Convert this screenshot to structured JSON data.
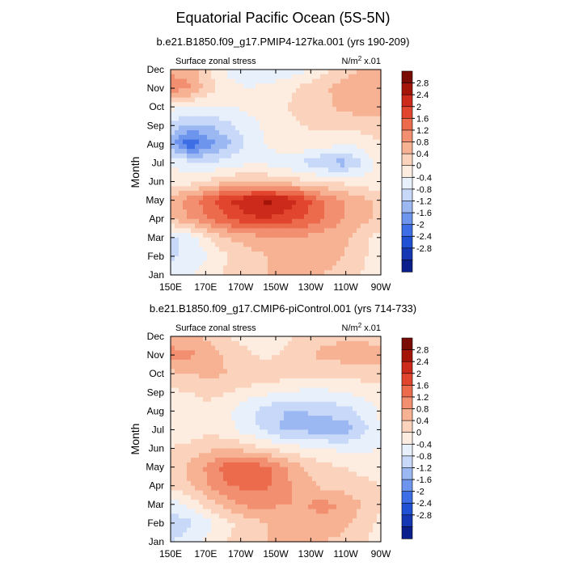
{
  "figure": {
    "title": "Equatorial Pacific Ocean (5S-5N)"
  },
  "legend_colors": [
    "#0a1e8c",
    "#1537b3",
    "#2050d4",
    "#3d6ee6",
    "#6d95ee",
    "#9cb8f3",
    "#c8d8f8",
    "#e8f0fc",
    "#fdece0",
    "#fbd3bd",
    "#f7b294",
    "#f28f70",
    "#ec6b4d",
    "#e2452e",
    "#cc2a1a",
    "#a51409",
    "#7a0c05"
  ],
  "chart_data": [
    {
      "type": "heatmap",
      "title": "b.e21.B1850.f09_g17.PMIP4-127ka.001 (yrs 190-209)",
      "left_label": "Surface zonal stress",
      "right_label_prefix": "N/m",
      "right_label_exp": "2",
      "right_label_suffix": " x.01",
      "ylabel": "Month",
      "xlabel": "",
      "x_ticks": [
        "150E",
        "170E",
        "170W",
        "150W",
        "130W",
        "110W",
        "90W"
      ],
      "x_lon": [
        150,
        170,
        190,
        210,
        230,
        250,
        270
      ],
      "y_ticks": [
        "Jan",
        "Feb",
        "Mar",
        "Apr",
        "May",
        "Jun",
        "Jul",
        "Aug",
        "Sep",
        "Oct",
        "Nov",
        "Dec"
      ],
      "levels": [
        -2.8,
        -2.4,
        -2,
        -1.6,
        -1.2,
        -0.8,
        -0.4,
        0,
        0.4,
        0.8,
        1.2,
        1.6,
        2,
        2.4,
        2.8
      ],
      "level_labels": [
        "2.8",
        "2.4",
        "2",
        "1.6",
        "1.2",
        "0.8",
        "0.4",
        "0",
        "-0.4",
        "-0.8",
        "-1.2",
        "-1.6",
        "-2",
        "-2.4",
        "-2.8"
      ],
      "values": [
        [
          -0.5,
          -0.4,
          -0.2,
          0.1,
          0.2,
          0.4,
          0.5,
          0.5,
          0.4,
          0.3,
          0.0,
          -0.4
        ],
        [
          -0.9,
          -0.7,
          -0.4,
          0.0,
          0.2,
          0.4,
          0.5,
          0.5,
          0.5,
          0.4,
          0.1,
          -0.3
        ],
        [
          -0.9,
          -0.6,
          0.0,
          0.4,
          0.6,
          0.7,
          0.8,
          0.7,
          0.6,
          0.5,
          0.2,
          -0.2
        ],
        [
          0.4,
          0.8,
          1.2,
          1.6,
          1.9,
          2.0,
          1.8,
          1.6,
          1.2,
          0.8,
          0.5,
          0.3
        ],
        [
          0.6,
          1.0,
          1.5,
          2.0,
          2.3,
          2.5,
          2.3,
          1.8,
          1.2,
          0.8,
          0.5,
          0.3
        ],
        [
          -0.3,
          -0.2,
          0.1,
          0.3,
          0.4,
          0.3,
          0.2,
          0.1,
          0.0,
          -0.1,
          -0.2,
          -0.3
        ],
        [
          -0.4,
          -0.6,
          -0.8,
          -0.6,
          -0.5,
          -0.5,
          -0.6,
          -0.9,
          -1.2,
          -1.4,
          -0.8,
          -0.2
        ],
        [
          -1.4,
          -2.4,
          -1.8,
          -1.3,
          -0.7,
          -0.4,
          -0.2,
          -0.1,
          -0.2,
          -0.4,
          -0.3,
          0.0
        ],
        [
          -0.9,
          -1.3,
          -1.2,
          -0.9,
          -0.6,
          -0.3,
          -0.1,
          0.0,
          0.1,
          0.1,
          0.2,
          0.2
        ],
        [
          -0.3,
          -0.4,
          -0.4,
          -0.4,
          -0.3,
          -0.2,
          0.0,
          0.1,
          0.3,
          0.5,
          0.6,
          0.6
        ],
        [
          1.0,
          0.9,
          0.2,
          -0.2,
          -0.4,
          -0.3,
          -0.1,
          0.1,
          0.3,
          0.6,
          0.7,
          0.7
        ],
        [
          0.7,
          0.6,
          0.0,
          -0.5,
          -0.7,
          -0.8,
          -0.7,
          -0.5,
          -0.1,
          0.2,
          0.4,
          0.4
        ]
      ]
    },
    {
      "type": "heatmap",
      "title": "b.e21.B1850.f09_g17.CMIP6-piControl.001 (yrs 714-733)",
      "left_label": "Surface zonal stress",
      "right_label_prefix": "N/m",
      "right_label_exp": "2",
      "right_label_suffix": " x.01",
      "ylabel": "Month",
      "xlabel": "",
      "x_ticks": [
        "150E",
        "170E",
        "170W",
        "150W",
        "130W",
        "110W",
        "90W"
      ],
      "x_lon": [
        150,
        170,
        190,
        210,
        230,
        250,
        270
      ],
      "y_ticks": [
        "Jan",
        "Feb",
        "Mar",
        "Apr",
        "May",
        "Jun",
        "Jul",
        "Aug",
        "Sep",
        "Oct",
        "Nov",
        "Dec"
      ],
      "levels": [
        -2.8,
        -2.4,
        -2,
        -1.6,
        -1.2,
        -0.8,
        -0.4,
        0,
        0.4,
        0.8,
        1.2,
        1.6,
        2,
        2.4,
        2.8
      ],
      "level_labels": [
        "2.8",
        "2.4",
        "2",
        "1.6",
        "1.2",
        "0.8",
        "0.4",
        "0",
        "-0.4",
        "-0.8",
        "-1.2",
        "-1.6",
        "-2",
        "-2.4",
        "-2.8"
      ],
      "values": [
        [
          -0.8,
          -0.6,
          -0.3,
          0.0,
          0.2,
          0.4,
          0.5,
          0.5,
          0.4,
          0.3,
          0.1,
          -0.2
        ],
        [
          -1.1,
          -0.9,
          -0.5,
          -0.1,
          0.2,
          0.4,
          0.6,
          0.7,
          0.7,
          0.5,
          0.2,
          -0.1
        ],
        [
          -0.6,
          -0.3,
          0.2,
          0.6,
          0.9,
          0.9,
          0.8,
          0.8,
          0.9,
          0.8,
          0.4,
          0.0
        ],
        [
          0.1,
          0.4,
          0.8,
          1.2,
          1.3,
          1.3,
          0.9,
          0.6,
          0.3,
          0.2,
          0.1,
          0.0
        ],
        [
          0.1,
          0.5,
          0.9,
          1.4,
          1.5,
          1.3,
          0.8,
          0.4,
          0.1,
          0.0,
          -0.1,
          -0.1
        ],
        [
          0.0,
          0.1,
          0.3,
          0.4,
          0.2,
          0.0,
          -0.2,
          -0.3,
          -0.4,
          -0.5,
          -0.5,
          -0.4
        ],
        [
          -0.2,
          -0.2,
          -0.1,
          -0.3,
          -0.6,
          -0.9,
          -1.3,
          -1.3,
          -1.4,
          -1.5,
          -1.0,
          -0.4
        ],
        [
          -0.3,
          -0.2,
          -0.1,
          -0.3,
          -0.7,
          -1.0,
          -1.2,
          -1.2,
          -1.1,
          -1.0,
          -0.7,
          -0.3
        ],
        [
          -0.1,
          0.0,
          0.1,
          0.0,
          -0.2,
          -0.3,
          -0.4,
          -0.5,
          -0.5,
          -0.4,
          -0.3,
          -0.2
        ],
        [
          0.3,
          0.4,
          0.5,
          0.4,
          0.4,
          0.3,
          0.2,
          0.1,
          0.1,
          0.1,
          0.2,
          0.3
        ],
        [
          1.0,
          0.9,
          0.6,
          0.3,
          0.1,
          -0.1,
          0.1,
          0.3,
          0.5,
          0.6,
          0.6,
          0.5
        ],
        [
          0.5,
          0.5,
          0.3,
          0.0,
          -0.2,
          -0.3,
          -0.1,
          0.1,
          0.3,
          0.3,
          0.3,
          0.3
        ]
      ]
    }
  ]
}
